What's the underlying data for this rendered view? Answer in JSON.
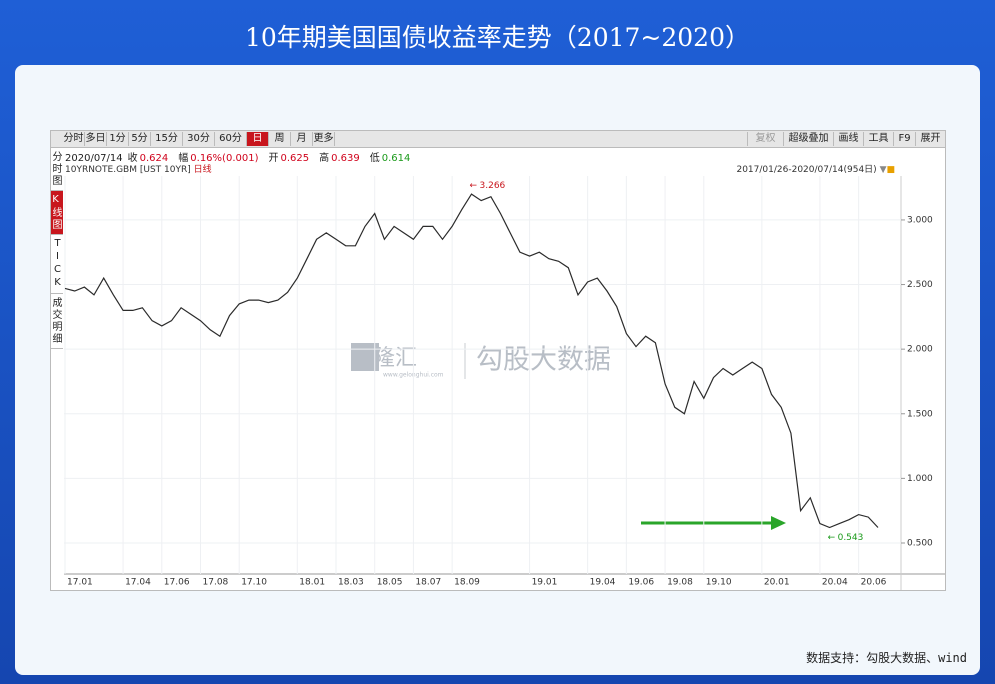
{
  "header": {
    "title": "10年期美国国债收益率走势（2017~2020）"
  },
  "toolbar": {
    "left": [
      "分时",
      "多日",
      "1分",
      "5分",
      "15分",
      "30分",
      "60分",
      "日",
      "周",
      "月",
      "更多"
    ],
    "active": "日",
    "right": [
      "复权",
      "超级叠加",
      "画线",
      "工具",
      "F9",
      "展开"
    ]
  },
  "side_tabs": [
    "分时图",
    "K线图",
    "TICK",
    "成交明细"
  ],
  "side_active": "K线图",
  "info": {
    "date": "2020/07/14",
    "items": [
      {
        "key": "收",
        "val": "0.624",
        "color": "#d0021b"
      },
      {
        "key": "幅",
        "val": "0.16%(0.001)",
        "color": "#d0021b"
      },
      {
        "key": "开",
        "val": "0.625",
        "color": "#d0021b"
      },
      {
        "key": "高",
        "val": "0.639",
        "color": "#d0021b"
      },
      {
        "key": "低",
        "val": "0.614",
        "color": "#1a9a1a"
      }
    ]
  },
  "symbol": {
    "name": "10YRNOTE.GBM [UST 10YR]",
    "period": "日线",
    "range": "2017/01/26-2020/07/14(954日)"
  },
  "watermark": {
    "logo": "格隆汇",
    "site": "www.gelonghui.com",
    "brand": "勾股大数据"
  },
  "footer": "数据支持：勾股大数据、wind",
  "chart_data": {
    "type": "line",
    "color": "#2b2b2b",
    "categories": [
      "17.01",
      null,
      null,
      null,
      null,
      null,
      "17.04",
      null,
      null,
      null,
      "17.06",
      null,
      null,
      null,
      "17.08",
      null,
      null,
      null,
      "17.10",
      null,
      null,
      null,
      null,
      null,
      "18.01",
      null,
      null,
      null,
      "18.03",
      null,
      null,
      null,
      "18.05",
      null,
      null,
      null,
      "18.07",
      null,
      null,
      null,
      "18.09",
      null,
      null,
      null,
      null,
      null,
      null,
      null,
      "19.01",
      null,
      null,
      null,
      null,
      null,
      "19.04",
      null,
      null,
      null,
      "19.06",
      null,
      null,
      null,
      "19.08",
      null,
      null,
      null,
      "19.10",
      null,
      null,
      null,
      null,
      null,
      "20.01",
      null,
      null,
      null,
      null,
      null,
      "20.04",
      null,
      null,
      null,
      "20.06",
      null,
      null
    ],
    "values": [
      2.47,
      2.45,
      2.48,
      2.42,
      2.55,
      2.42,
      2.3,
      2.3,
      2.32,
      2.22,
      2.18,
      2.22,
      2.32,
      2.27,
      2.22,
      2.15,
      2.1,
      2.26,
      2.35,
      2.38,
      2.38,
      2.36,
      2.38,
      2.44,
      2.55,
      2.7,
      2.85,
      2.9,
      2.85,
      2.8,
      2.8,
      2.95,
      3.05,
      2.85,
      2.95,
      2.9,
      2.85,
      2.95,
      2.95,
      2.85,
      2.95,
      3.08,
      3.2,
      3.15,
      3.18,
      3.05,
      2.9,
      2.75,
      2.72,
      2.75,
      2.7,
      2.68,
      2.63,
      2.42,
      2.52,
      2.55,
      2.45,
      2.33,
      2.12,
      2.02,
      2.1,
      2.05,
      1.73,
      1.55,
      1.5,
      1.75,
      1.62,
      1.78,
      1.85,
      1.8,
      1.85,
      1.9,
      1.85,
      1.65,
      1.55,
      1.35,
      0.75,
      0.85,
      0.65,
      0.62,
      0.65,
      0.68,
      0.72,
      0.7,
      0.62
    ],
    "ylim": [
      0.26,
      3.34
    ],
    "yticks": [
      {
        "value": 0.5,
        "label": "0.500"
      },
      {
        "value": 1,
        "label": "1.000"
      },
      {
        "value": 1.5,
        "label": "1.500"
      },
      {
        "value": 2,
        "label": "2.000"
      },
      {
        "value": 2.5,
        "label": "2.500"
      },
      {
        "value": 3,
        "label": "3.000"
      }
    ],
    "grid": true,
    "high_label": 3.266,
    "low_label": 0.543
  }
}
